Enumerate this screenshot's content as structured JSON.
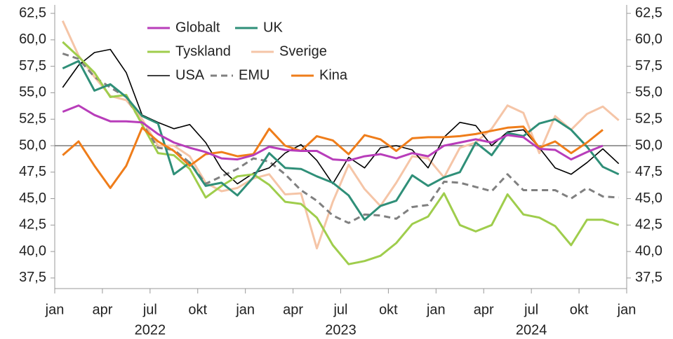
{
  "chart_data": {
    "type": "line",
    "x": [
      "2022-01",
      "2022-02",
      "2022-03",
      "2022-04",
      "2022-05",
      "2022-06",
      "2022-07",
      "2022-08",
      "2022-09",
      "2022-10",
      "2022-11",
      "2022-12",
      "2023-01",
      "2023-02",
      "2023-03",
      "2023-04",
      "2023-05",
      "2023-06",
      "2023-07",
      "2023-08",
      "2023-09",
      "2023-10",
      "2023-11",
      "2023-12",
      "2024-01",
      "2024-02",
      "2024-03",
      "2024-04",
      "2024-05",
      "2024-06",
      "2024-07",
      "2024-08",
      "2024-09",
      "2024-10",
      "2024-11",
      "2024-12"
    ],
    "series": [
      {
        "name": "Globalt",
        "color": "#b83dba",
        "width": 3,
        "values": [
          53.2,
          53.8,
          52.9,
          52.3,
          52.3,
          52.2,
          51.1,
          50.3,
          49.8,
          49.4,
          48.8,
          48.7,
          49.1,
          49.9,
          49.6,
          49.5,
          49.5,
          48.7,
          48.6,
          49.0,
          49.2,
          48.8,
          49.3,
          49.0,
          50.0,
          50.3,
          50.6,
          50.3,
          51.0,
          50.8,
          49.7,
          49.6,
          48.7,
          49.4,
          50.0,
          null
        ]
      },
      {
        "name": "UK",
        "color": "#2f8f78",
        "width": 3,
        "values": [
          57.3,
          58.0,
          55.2,
          55.8,
          54.6,
          52.8,
          52.1,
          47.3,
          48.4,
          46.2,
          46.5,
          45.3,
          47.0,
          49.3,
          47.9,
          47.8,
          47.1,
          46.5,
          45.3,
          43.0,
          44.3,
          44.8,
          47.2,
          46.2,
          47.0,
          47.5,
          50.3,
          49.1,
          51.2,
          50.9,
          52.1,
          52.5,
          51.5,
          49.9,
          48.0,
          47.3
        ]
      },
      {
        "name": "Tyskland",
        "color": "#9fcd4c",
        "width": 3,
        "values": [
          59.8,
          58.4,
          56.9,
          54.6,
          54.8,
          52.0,
          49.3,
          49.1,
          47.8,
          45.1,
          46.2,
          47.1,
          47.3,
          46.3,
          44.7,
          44.5,
          43.2,
          40.6,
          38.8,
          39.1,
          39.6,
          40.8,
          42.6,
          43.3,
          45.5,
          42.5,
          41.9,
          42.5,
          45.4,
          43.5,
          43.2,
          42.4,
          40.6,
          43.0,
          43.0,
          42.5
        ]
      },
      {
        "name": "Sverige",
        "color": "#f5c5a7",
        "width": 3,
        "values": [
          61.8,
          58.5,
          56.5,
          54.7,
          54.3,
          52.5,
          50.0,
          50.0,
          49.0,
          46.5,
          45.7,
          46.0,
          46.9,
          47.3,
          45.4,
          45.5,
          40.3,
          44.7,
          48.2,
          45.9,
          44.3,
          46.5,
          49.0,
          48.8,
          47.0,
          49.8,
          50.3,
          51.6,
          53.8,
          53.1,
          49.3,
          52.8,
          51.5,
          53.0,
          53.7,
          52.4
        ]
      },
      {
        "name": "USA",
        "color": "#000000",
        "width": 1.6,
        "values": [
          55.5,
          57.6,
          58.8,
          59.1,
          56.9,
          52.9,
          52.2,
          51.6,
          52.0,
          50.3,
          47.8,
          46.4,
          47.4,
          47.9,
          49.3,
          50.1,
          48.6,
          46.4,
          48.9,
          47.9,
          49.8,
          50.0,
          49.6,
          47.9,
          50.8,
          52.2,
          51.9,
          50.0,
          51.3,
          51.5,
          49.8,
          47.9,
          47.3,
          48.4,
          49.7,
          48.3
        ]
      },
      {
        "name": "EMU",
        "color": "#808080",
        "width": 3,
        "dashed": true,
        "values": [
          58.7,
          58.2,
          56.5,
          55.5,
          54.6,
          52.1,
          49.8,
          49.6,
          48.4,
          46.4,
          47.1,
          47.8,
          48.8,
          48.5,
          47.3,
          45.8,
          44.8,
          43.4,
          42.7,
          43.5,
          43.4,
          43.1,
          44.2,
          44.4,
          46.6,
          46.5,
          46.1,
          45.7,
          47.3,
          45.8,
          45.8,
          45.8,
          45.0,
          46.0,
          45.2,
          45.1
        ]
      },
      {
        "name": "Kina",
        "color": "#ef7d1a",
        "width": 3,
        "values": [
          49.1,
          50.4,
          48.1,
          46.0,
          48.1,
          51.7,
          50.4,
          49.5,
          48.1,
          49.2,
          49.4,
          49.0,
          49.2,
          51.6,
          50.0,
          49.5,
          50.9,
          50.5,
          49.2,
          51.0,
          50.6,
          49.5,
          50.7,
          50.8,
          50.8,
          50.9,
          51.1,
          51.4,
          51.7,
          51.8,
          49.8,
          50.4,
          49.3,
          50.3,
          51.5,
          null
        ]
      }
    ],
    "xlim": [
      "2022-01",
      "2025-01"
    ],
    "xticks": [
      {
        "value": "2022-01",
        "label": "jan"
      },
      {
        "value": "2022-04",
        "label": "apr"
      },
      {
        "value": "2022-07",
        "label": "jul"
      },
      {
        "value": "2022-10",
        "label": "okt"
      },
      {
        "value": "2023-01",
        "label": "jan"
      },
      {
        "value": "2023-04",
        "label": "apr"
      },
      {
        "value": "2023-07",
        "label": "jul"
      },
      {
        "value": "2023-10",
        "label": "okt"
      },
      {
        "value": "2024-01",
        "label": "jan"
      },
      {
        "value": "2024-04",
        "label": "apr"
      },
      {
        "value": "2024-07",
        "label": "jul"
      },
      {
        "value": "2024-10",
        "label": "okt"
      },
      {
        "value": "2025-01",
        "label": "jan"
      }
    ],
    "years": [
      "2022",
      "2023",
      "2024"
    ],
    "ylim": [
      36.5,
      63.3
    ],
    "yticks": [
      {
        "value": 37.5,
        "label": "37,5"
      },
      {
        "value": 40,
        "label": "40,0"
      },
      {
        "value": 42.5,
        "label": "42,5"
      },
      {
        "value": 45,
        "label": "45,0"
      },
      {
        "value": 47.5,
        "label": "47,5"
      },
      {
        "value": 50,
        "label": "50,0"
      },
      {
        "value": 52.5,
        "label": "52,5"
      },
      {
        "value": 55,
        "label": "55,0"
      },
      {
        "value": 57.5,
        "label": "57,5"
      },
      {
        "value": 60,
        "label": "60,0"
      },
      {
        "value": 62.5,
        "label": "62,5"
      }
    ],
    "hline": 50,
    "right_axis": true
  }
}
